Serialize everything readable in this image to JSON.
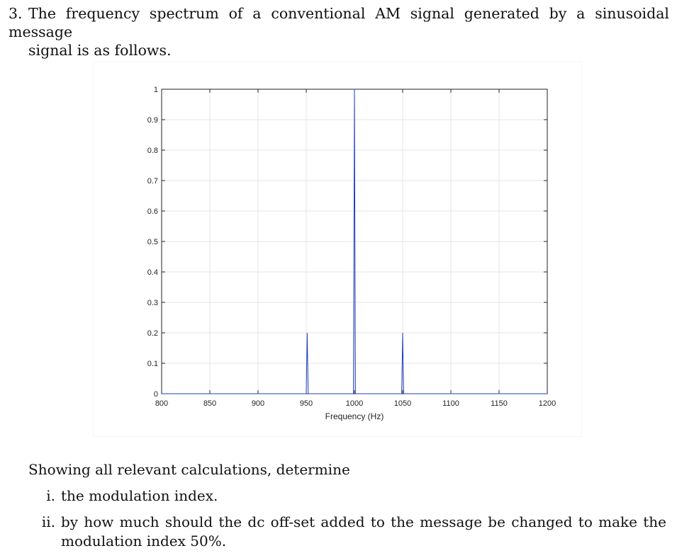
{
  "question": {
    "number": "3.",
    "line1": "The frequency spectrum of a conventional AM signal generated by a sinusoidal message",
    "line2": "signal is as follows."
  },
  "chart_data": {
    "type": "line",
    "xlabel": "Frequency (Hz)",
    "ylabel": "",
    "title": "",
    "xlim": [
      800,
      1200
    ],
    "ylim": [
      0,
      1
    ],
    "grid": true,
    "x_ticks": [
      "800",
      "850",
      "900",
      "950",
      "1000",
      "1050",
      "1100",
      "1150",
      "1200"
    ],
    "y_ticks": [
      "0",
      "0.1",
      "0.2",
      "0.3",
      "0.4",
      "0.5",
      "0.6",
      "0.7",
      "0.8",
      "0.9",
      "1"
    ],
    "series": [
      {
        "color": "#1f3fbf",
        "x": [
          800,
          950,
          951,
          952,
          999,
          1000,
          1001,
          1049,
          1050,
          1051,
          1200
        ],
        "y": [
          0,
          0,
          0.2,
          0,
          0,
          1,
          0,
          0,
          0.2,
          0,
          0
        ]
      }
    ]
  },
  "tasks": {
    "intro": "Showing all relevant calculations, determine",
    "items": [
      {
        "marker": "i.",
        "text": "the modulation index."
      },
      {
        "marker": "ii.",
        "text": "by how much should the dc off-set added to the message be changed to make the modulation index 50%."
      }
    ]
  }
}
